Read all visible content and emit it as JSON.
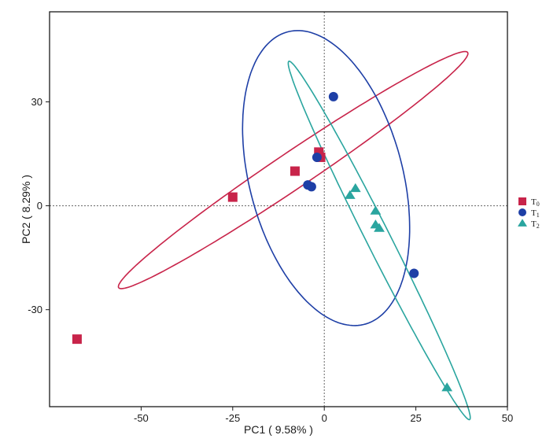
{
  "chart_data": {
    "type": "scatter",
    "title": "",
    "xlabel": "PC1 ( 9.58% )",
    "ylabel": "PC2 ( 8.29% )",
    "xlim": [
      -75,
      50
    ],
    "ylim": [
      -58,
      56
    ],
    "xticks": [
      -50,
      -25,
      0,
      25,
      50
    ],
    "yticks": [
      -30,
      0,
      30
    ],
    "reference_lines": {
      "x": 0,
      "y": 0,
      "style": "dotted"
    },
    "legend": {
      "placement": "right"
    },
    "series": [
      {
        "name": "T0",
        "label_main": "T",
        "label_sub": "0",
        "marker": "square",
        "color": "#c8244a",
        "points": [
          {
            "x": -67.5,
            "y": -38.5
          },
          {
            "x": -25,
            "y": 2.5
          },
          {
            "x": -8,
            "y": 10
          },
          {
            "x": -1.5,
            "y": 15.5
          },
          {
            "x": -1,
            "y": 14
          }
        ],
        "ellipse": {
          "cx": -8.5,
          "cy": 10.3,
          "semi_major": 58.5,
          "semi_minor": 5.1,
          "angle_deg": 35.5
        }
      },
      {
        "name": "T1",
        "label_main": "T",
        "label_sub": "1",
        "marker": "circle",
        "color": "#1e3fa6",
        "points": [
          {
            "x": 2.5,
            "y": 31.5
          },
          {
            "x": -2,
            "y": 14
          },
          {
            "x": -4.5,
            "y": 6
          },
          {
            "x": -3.5,
            "y": 5.5
          },
          {
            "x": 24.5,
            "y": -19.5
          }
        ],
        "ellipse": {
          "cx": 0.5,
          "cy": 8,
          "semi_major": 43.5,
          "semi_minor": 21,
          "angle_deg": -76.5
        }
      },
      {
        "name": "T2",
        "label_main": "T",
        "label_sub": "2",
        "marker": "triangle",
        "color": "#2aa59f",
        "points": [
          {
            "x": 8.5,
            "y": 5
          },
          {
            "x": 7,
            "y": 3
          },
          {
            "x": 14,
            "y": -1.5
          },
          {
            "x": 14,
            "y": -5.5
          },
          {
            "x": 15,
            "y": -6.5
          },
          {
            "x": 33.5,
            "y": -52.5
          }
        ],
        "ellipse": {
          "cx": 15,
          "cy": -10,
          "semi_major": 57.3,
          "semi_minor": 3.3,
          "angle_deg": -64.5
        }
      }
    ]
  }
}
